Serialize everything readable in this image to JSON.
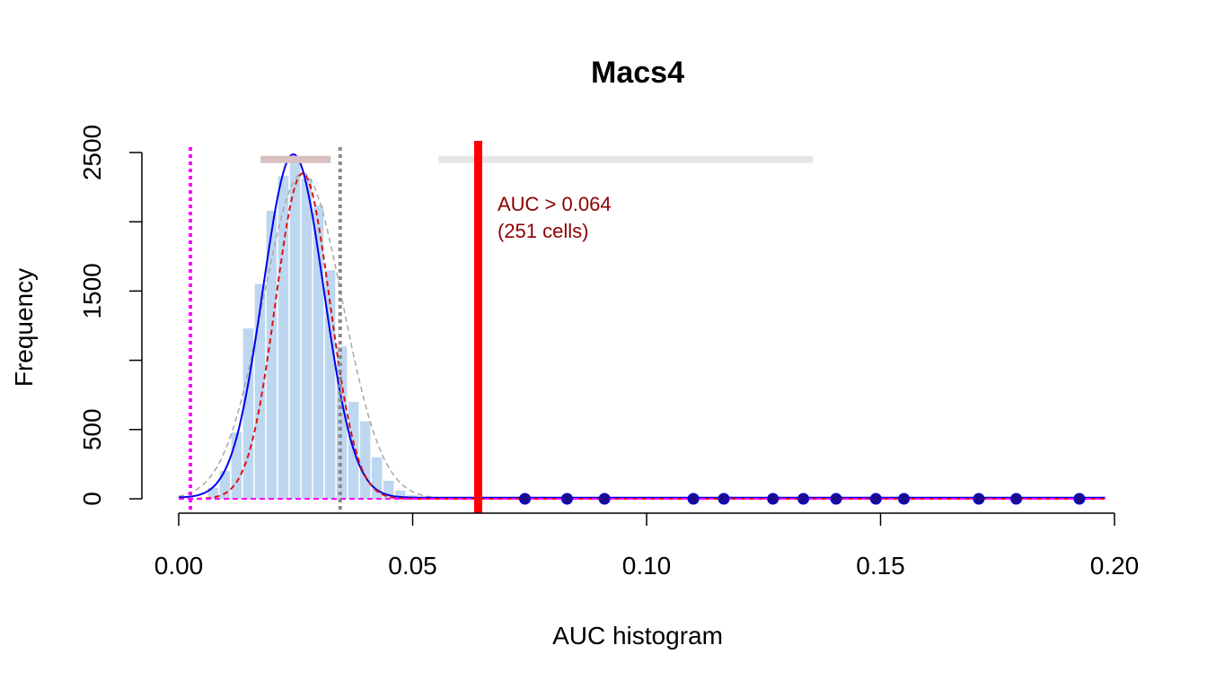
{
  "chart_data": {
    "type": "bar",
    "title": "Macs4",
    "xlabel": "AUC histogram",
    "ylabel": "Frequency",
    "xlim": [
      0,
      0.2
    ],
    "ylim": [
      0,
      2500
    ],
    "x_ticks": [
      0,
      0.05,
      0.1,
      0.15,
      0.2
    ],
    "x_tick_labels": [
      "0.00",
      "0.05",
      "0.10",
      "0.15",
      "0.20"
    ],
    "y_ticks": [
      0,
      500,
      1000,
      1500,
      2000,
      2500
    ],
    "y_tick_labels": [
      "0",
      "500",
      "",
      "1500",
      "",
      "2500"
    ],
    "bin_width": 0.0025,
    "bins": [
      {
        "x": 0.0075,
        "value": 80
      },
      {
        "x": 0.01,
        "value": 200
      },
      {
        "x": 0.0125,
        "value": 480
      },
      {
        "x": 0.015,
        "value": 1230
      },
      {
        "x": 0.0175,
        "value": 1550
      },
      {
        "x": 0.02,
        "value": 2080
      },
      {
        "x": 0.0225,
        "value": 2330
      },
      {
        "x": 0.025,
        "value": 2460
      },
      {
        "x": 0.0275,
        "value": 2310
      },
      {
        "x": 0.03,
        "value": 2120
      },
      {
        "x": 0.0325,
        "value": 1650
      },
      {
        "x": 0.035,
        "value": 1100
      },
      {
        "x": 0.0375,
        "value": 700
      },
      {
        "x": 0.04,
        "value": 560
      },
      {
        "x": 0.0425,
        "value": 300
      },
      {
        "x": 0.045,
        "value": 130
      },
      {
        "x": 0.0475,
        "value": 60
      },
      {
        "x": 0.05,
        "value": 25
      }
    ],
    "high_auc_points": [
      0.074,
      0.083,
      0.091,
      0.11,
      0.1165,
      0.127,
      0.1335,
      0.1405,
      0.149,
      0.155,
      0.171,
      0.179,
      0.1925
    ],
    "threshold": {
      "value": 0.064,
      "label_line1": "AUC > 0.064",
      "label_line2": "(251 cells)"
    },
    "markers": {
      "magenta_vline": 0.0025,
      "gray_vline": 0.0345,
      "range_bar_left": [
        0.0175,
        0.0325
      ],
      "range_bar_right": [
        0.0555,
        0.1355
      ]
    },
    "curves": {
      "density_blue": {
        "mean": 0.0245,
        "sd": 0.0065,
        "peak": 2480
      },
      "fit_red": {
        "mean": 0.0265,
        "sd": 0.0058,
        "peak": 2350
      },
      "fit_gray": {
        "mean": 0.0265,
        "sd": 0.0085,
        "peak": 2350
      }
    },
    "colors": {
      "bars": "#bdd7f0",
      "density": "#0000ee",
      "fit_red": "#e01010",
      "fit_gray": "#a6a6a6",
      "threshold": "#ff0000",
      "magenta": "#ff00ff",
      "gray_line": "#888888",
      "range_left": "#d9c0c0",
      "range_right": "#e6e6e6",
      "annotation": "#8b0000",
      "points_fill": "#1a0a8c"
    },
    "grid": false,
    "legend": "none"
  }
}
